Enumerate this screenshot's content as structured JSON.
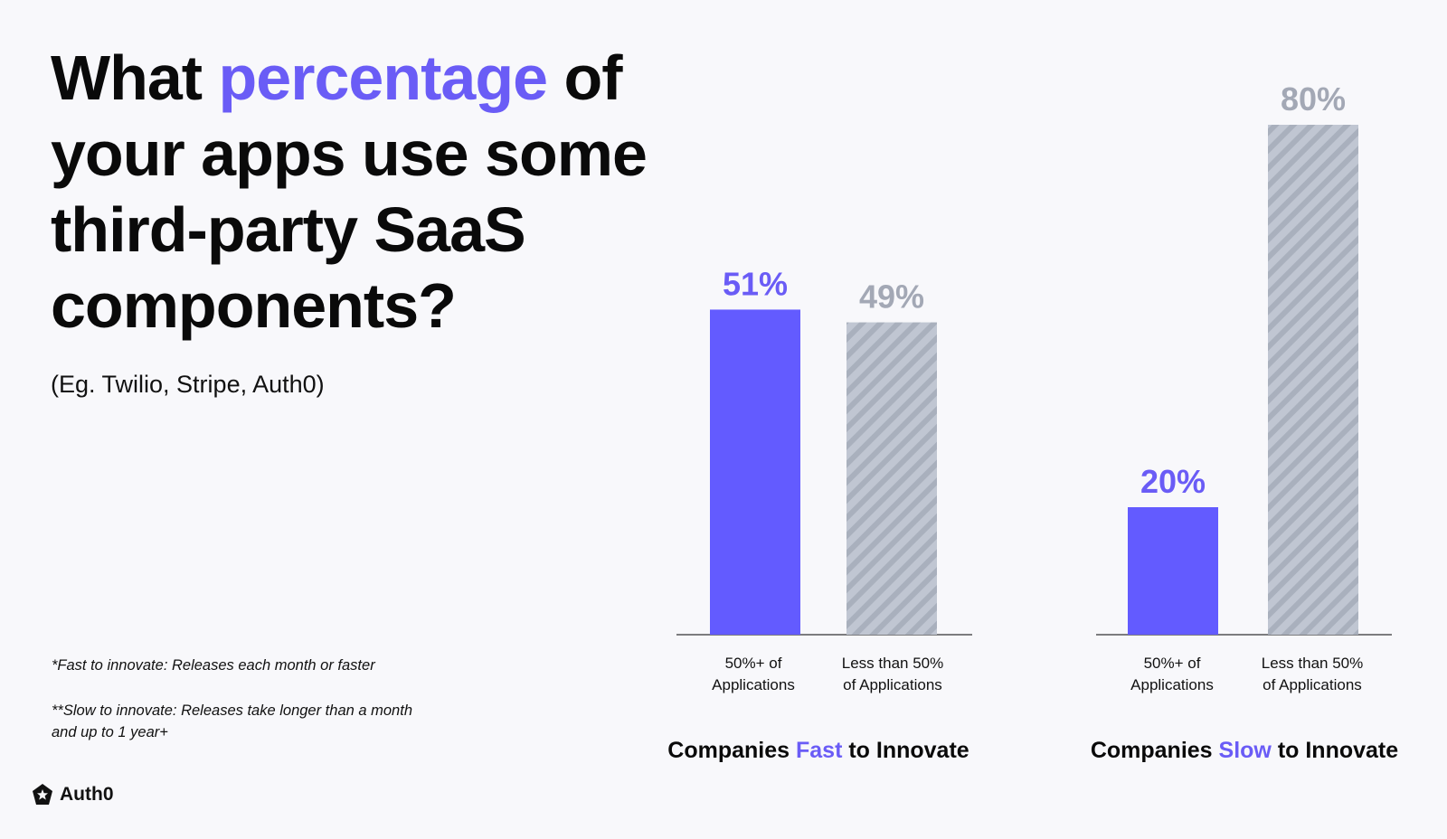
{
  "title": {
    "part1": "What ",
    "accent": "percentage",
    "part2": " of your apps use some third-party SaaS components?"
  },
  "subtitle": "(Eg. Twilio, Stripe, Auth0)",
  "footnotes": {
    "fast": "*Fast to innovate: Releases each month or faster",
    "slow": "**Slow to innovate: Releases take longer than a month and up to 1 year+"
  },
  "logo": {
    "text": "Auth0",
    "icon": "auth0-star-icon"
  },
  "colors": {
    "accent": "#6a5cf6",
    "bar_primary": "#635bff",
    "bar_gray": "#b8bfcc",
    "stripe": "#a7aebb",
    "label_gray": "#a3a8b5"
  },
  "chart_data": [
    {
      "type": "bar",
      "title": {
        "pre": "Companies ",
        "accent": "Fast",
        "post": " to Innovate"
      },
      "categories": [
        "50%+ of Applications",
        "Less than 50% of Applications"
      ],
      "category_lines": [
        [
          "50%+ of",
          "Applications"
        ],
        [
          "Less than 50%",
          "of Applications"
        ]
      ],
      "values": [
        51,
        49
      ],
      "value_labels": [
        "51%",
        "49%"
      ],
      "ylim": [
        0,
        80
      ]
    },
    {
      "type": "bar",
      "title": {
        "pre": "Companies ",
        "accent": "Slow",
        "post": " to Innovate"
      },
      "categories": [
        "50%+ of Applications",
        "Less than 50% of Applications"
      ],
      "category_lines": [
        [
          "50%+ of",
          "Applications"
        ],
        [
          "Less than 50%",
          "of Applications"
        ]
      ],
      "values": [
        20,
        80
      ],
      "value_labels": [
        "20%",
        "80%"
      ],
      "ylim": [
        0,
        80
      ]
    }
  ]
}
